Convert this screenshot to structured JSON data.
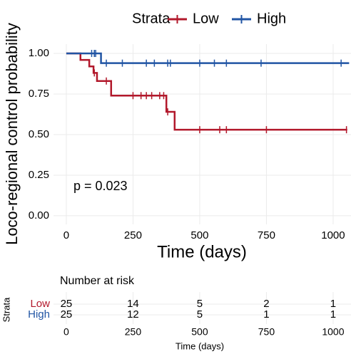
{
  "chart_data": {
    "type": "km-step",
    "xlabel": "Time (days)",
    "ylabel": "Loco-regional control probability",
    "legend_title": "Strata",
    "annotation": "p = 0.023",
    "grid": true,
    "xlim": [
      -48,
      1067
    ],
    "xticks": [
      0,
      250,
      500,
      750,
      1000
    ],
    "ylim": [
      -0.053,
      1.057
    ],
    "yticks": [
      {
        "value": 0,
        "label": "0.00"
      },
      {
        "value": 0.25,
        "label": "0.25"
      },
      {
        "value": 0.5,
        "label": "0.50"
      },
      {
        "value": 0.75,
        "label": "0.75"
      },
      {
        "value": 1,
        "label": "1.00"
      }
    ],
    "series": [
      {
        "name": "Low",
        "color": "#b2182b",
        "x": [
          0,
          53,
          86,
          102,
          115,
          168,
          375,
          406,
          1053
        ],
        "values": [
          1,
          0.96,
          0.92,
          0.88,
          0.83,
          0.74,
          0.64,
          0.53,
          0.53
        ],
        "censor_x": [
          105,
          150,
          250,
          280,
          300,
          320,
          350,
          365,
          380,
          500,
          575,
          600,
          750,
          1050
        ],
        "censor_values": [
          0.88,
          0.83,
          0.74,
          0.74,
          0.74,
          0.74,
          0.74,
          0.74,
          0.64,
          0.53,
          0.53,
          0.53,
          0.53,
          0.53
        ]
      },
      {
        "name": "High",
        "color": "#2155a4",
        "x": [
          0,
          130,
          1060
        ],
        "values": [
          1,
          0.94,
          0.94
        ],
        "censor_x": [
          95,
          105,
          110,
          150,
          210,
          300,
          330,
          380,
          390,
          500,
          555,
          600,
          730,
          1030
        ],
        "censor_values": [
          1,
          1,
          1,
          0.94,
          0.94,
          0.94,
          0.94,
          0.94,
          0.94,
          0.94,
          0.94,
          0.94,
          0.94,
          0.94
        ]
      }
    ]
  },
  "risk_table": {
    "title": "Number at risk",
    "ylabel": "Strata",
    "xlabel": "Time (days)",
    "times": [
      0,
      250,
      500,
      750,
      1000
    ],
    "rows": [
      {
        "name": "Low",
        "color": "#b2182b",
        "counts": [
          25,
          14,
          5,
          2,
          1
        ]
      },
      {
        "name": "High",
        "color": "#2155a4",
        "counts": [
          25,
          12,
          5,
          1,
          1
        ]
      }
    ]
  }
}
